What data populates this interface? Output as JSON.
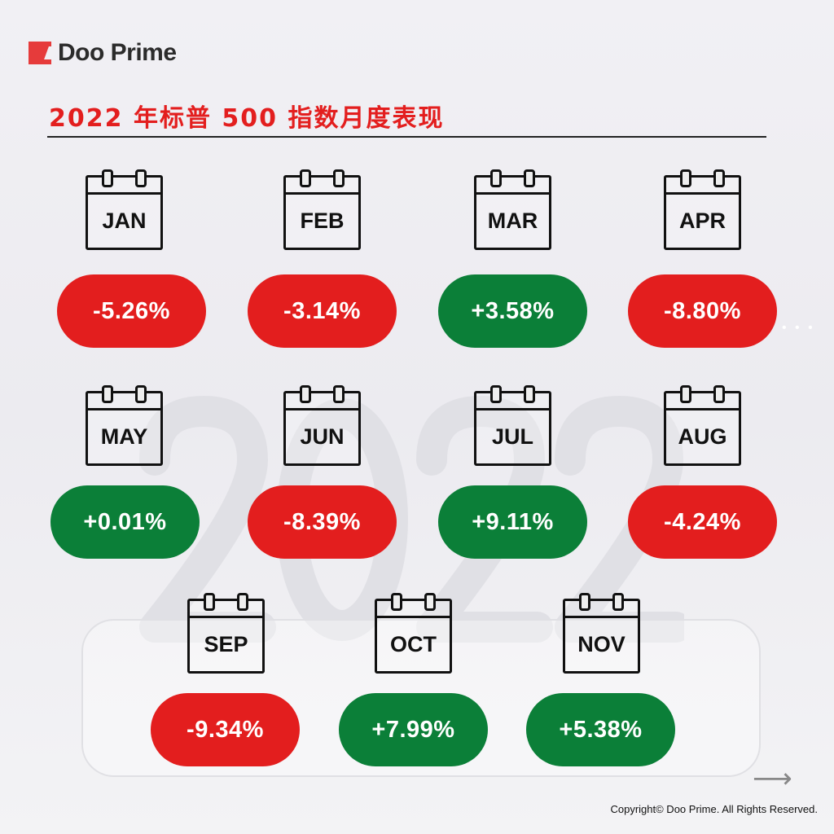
{
  "brand": {
    "name": "Doo Prime"
  },
  "title": "2022 年标普 500 指数月度表现",
  "colors": {
    "negative": "#e31e1e",
    "positive": "#0b7f38",
    "title": "#e31e1e"
  },
  "months": [
    {
      "label": "JAN",
      "value": "-5.26%",
      "trend": "negative"
    },
    {
      "label": "FEB",
      "value": "-3.14%",
      "trend": "negative"
    },
    {
      "label": "MAR",
      "value": "+3.58%",
      "trend": "positive"
    },
    {
      "label": "APR",
      "value": "-8.80%",
      "trend": "negative"
    },
    {
      "label": "MAY",
      "value": "+0.01%",
      "trend": "positive"
    },
    {
      "label": "JUN",
      "value": "-8.39%",
      "trend": "negative"
    },
    {
      "label": "JUL",
      "value": "+9.11%",
      "trend": "positive"
    },
    {
      "label": "AUG",
      "value": "-4.24%",
      "trend": "negative"
    },
    {
      "label": "SEP",
      "value": "-9.34%",
      "trend": "negative"
    },
    {
      "label": "OCT",
      "value": "+7.99%",
      "trend": "positive"
    },
    {
      "label": "NOV",
      "value": "+5.38%",
      "trend": "positive"
    }
  ],
  "background_text": "2022",
  "footer": {
    "copyright": "Copyright© Doo Prime. All Rights Reserved."
  },
  "icons": {
    "next": "arrow-right-icon",
    "calendar": "calendar-icon"
  }
}
